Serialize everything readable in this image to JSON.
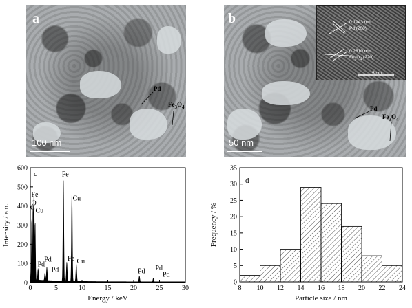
{
  "panel_a": {
    "letter": "a",
    "scale_label": "100 nm",
    "labels": [
      "Pd",
      "Fe3O4"
    ]
  },
  "panel_b": {
    "letter": "b",
    "scale_label": "50 nm",
    "labels": [
      "Pd",
      "Fe3O4"
    ],
    "inset": {
      "pd_spacing": "0.1943 nm",
      "pd_plane": "Pd (200)",
      "fe_spacing": "0.2810 nm",
      "fe_plane": "Fe3O4 (220)",
      "scale_label": "5 nm"
    }
  },
  "chart_data": [
    {
      "panel": "c",
      "type": "line",
      "title": "",
      "xlabel": "Energy / keV",
      "ylabel": "Intensity / a.u.",
      "xlim": [
        0,
        30
      ],
      "ylim": [
        0,
        600
      ],
      "xticks": [
        0,
        5,
        10,
        15,
        20,
        25,
        30
      ],
      "yticks": [
        0,
        100,
        200,
        300,
        400,
        500,
        600
      ],
      "peaks": [
        {
          "x": 0.28,
          "y": 330
        },
        {
          "x": 0.53,
          "y": 385
        },
        {
          "x": 0.71,
          "y": 440
        },
        {
          "x": 0.93,
          "y": 310
        },
        {
          "x": 1.5,
          "y": 60
        },
        {
          "x": 2.84,
          "y": 40
        },
        {
          "x": 3.2,
          "y": 70
        },
        {
          "x": 6.4,
          "y": 525
        },
        {
          "x": 7.06,
          "y": 100
        },
        {
          "x": 8.05,
          "y": 470
        },
        {
          "x": 8.9,
          "y": 90
        },
        {
          "x": 21.1,
          "y": 30
        },
        {
          "x": 23.8,
          "y": 18
        }
      ],
      "annotations": [
        {
          "text": "Fe",
          "x": 0.2,
          "y": 450
        },
        {
          "text": "O",
          "x": 0.2,
          "y": 405
        },
        {
          "text": "C",
          "x": 0.0,
          "y": 380
        },
        {
          "text": "Cu",
          "x": 1.0,
          "y": 365
        },
        {
          "text": "Pd",
          "x": 2.7,
          "y": 110
        },
        {
          "text": "Pd",
          "x": 1.4,
          "y": 85
        },
        {
          "text": "Pd",
          "x": 4.1,
          "y": 55
        },
        {
          "text": "Fe",
          "x": 6.1,
          "y": 555
        },
        {
          "text": "Cu",
          "x": 8.2,
          "y": 430
        },
        {
          "text": "Fe",
          "x": 7.2,
          "y": 115
        },
        {
          "text": "Cu",
          "x": 9.0,
          "y": 100
        },
        {
          "text": "Pd",
          "x": 20.8,
          "y": 48
        },
        {
          "text": "Pd",
          "x": 24.2,
          "y": 65
        },
        {
          "text": "Pd",
          "x": 25.6,
          "y": 30
        }
      ]
    },
    {
      "panel": "d",
      "type": "bar",
      "title": "",
      "xlabel": "Particle size / nm",
      "ylabel": "Frequency / %",
      "xlim": [
        8,
        24
      ],
      "ylim": [
        0,
        35
      ],
      "xticks": [
        8,
        10,
        12,
        14,
        16,
        18,
        20,
        22,
        24
      ],
      "yticks": [
        0,
        5,
        10,
        15,
        20,
        25,
        30,
        35
      ],
      "bin_edges": [
        8,
        10,
        12,
        14,
        16,
        18,
        20,
        22,
        24
      ],
      "values": [
        2,
        5,
        10,
        29,
        24,
        17,
        8,
        5
      ]
    }
  ]
}
